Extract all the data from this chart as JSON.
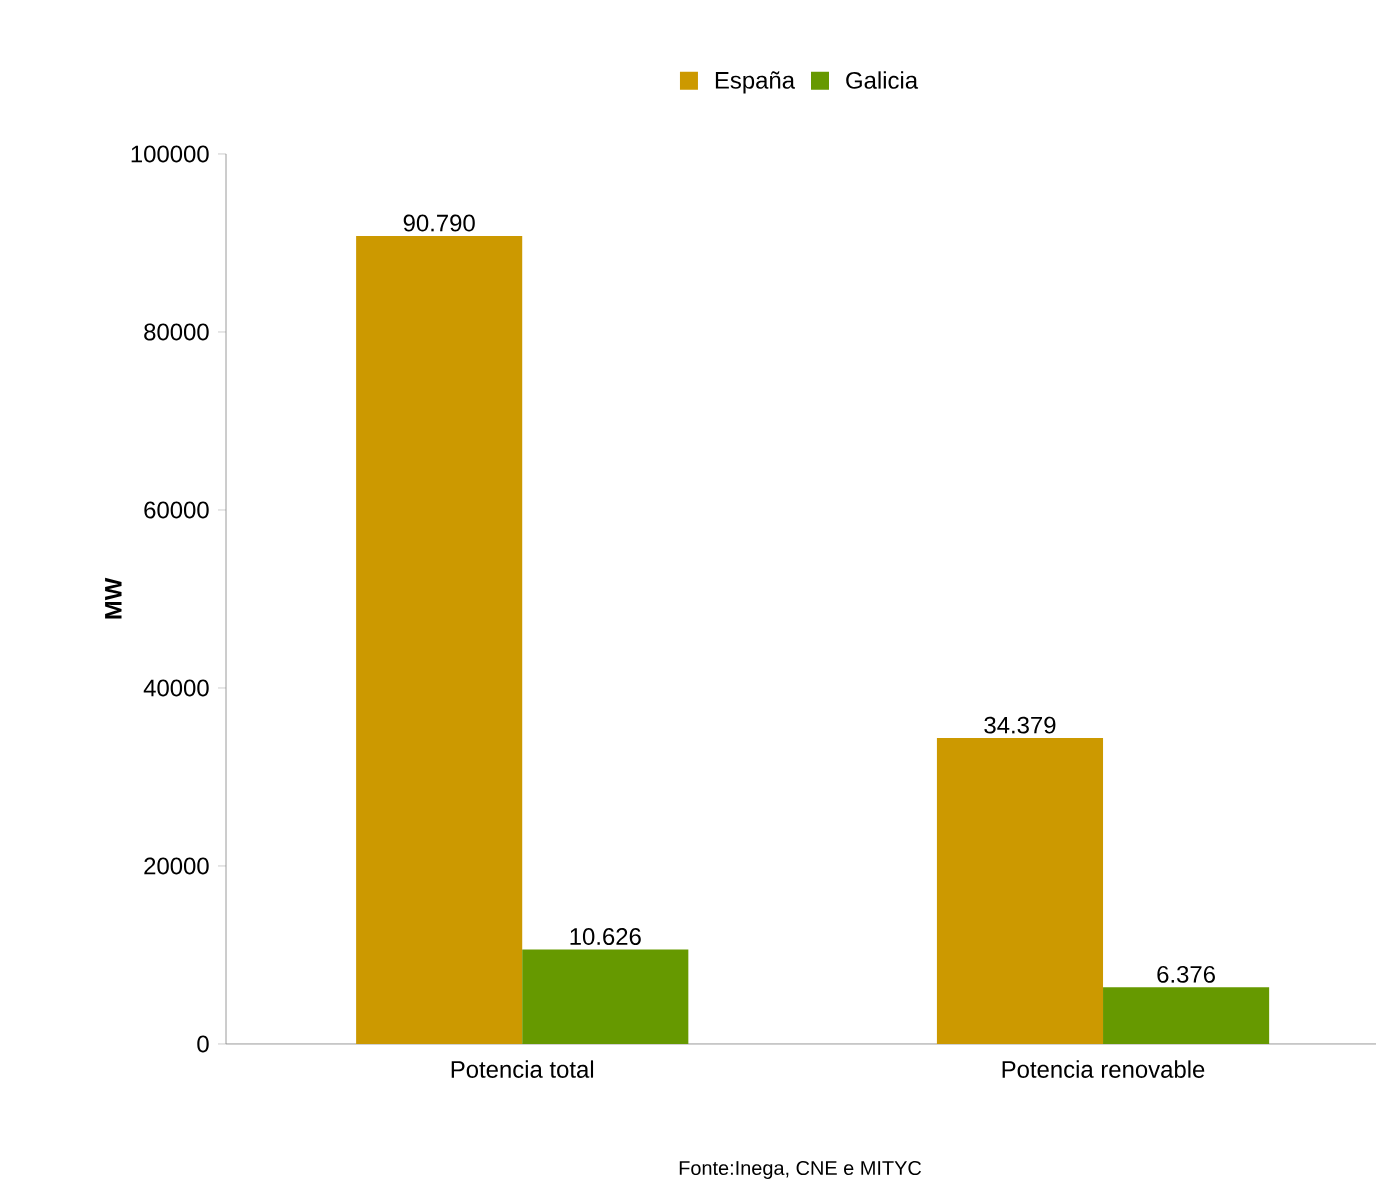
{
  "chart_data": {
    "type": "bar",
    "ylabel": "MW",
    "categories": [
      "Potencia total",
      "Potencia renovable"
    ],
    "series": [
      {
        "name": "España",
        "color": "#cc9900",
        "values": [
          90790,
          34379
        ],
        "value_labels": [
          "90.790",
          "34.379"
        ]
      },
      {
        "name": "Galicia",
        "color": "#669900",
        "values": [
          10626,
          6376
        ],
        "value_labels": [
          "10.626",
          "6.376"
        ]
      }
    ],
    "ylim": [
      0,
      100000
    ],
    "yticks": [
      0,
      20000,
      40000,
      60000,
      80000,
      100000
    ],
    "legend": "top",
    "grid": false,
    "annotations": [
      "Fonte:Inega, CNE e MITYC"
    ]
  }
}
